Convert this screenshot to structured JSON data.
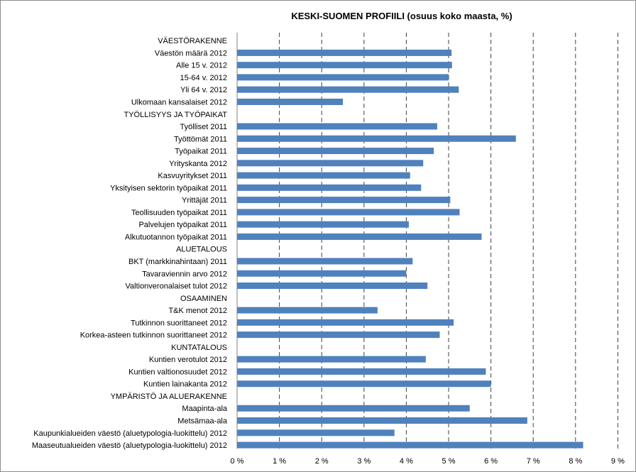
{
  "chart_data": {
    "type": "bar",
    "orientation": "horizontal",
    "title": "KESKI-SUOMEN PROFIILI (osuus koko maasta, %)",
    "xlabel": "",
    "ylabel": "",
    "xlim": [
      0,
      9
    ],
    "x_ticks": [
      "0 %",
      "1 %",
      "2 %",
      "3 %",
      "4 %",
      "5 %",
      "6 %",
      "7 %",
      "8 %",
      "9 %"
    ],
    "grid": "vertical dashed",
    "legend": "none",
    "bar_color": "#4f81bd",
    "categories": [
      "VÄESTÖRAKENNE",
      "Väestön määrä 2012",
      "Alle 15 v. 2012",
      "15-64 v. 2012",
      "Yli 64 v. 2012",
      "Ulkomaan kansalaiset 2012",
      "TYÖLLISYYS JA TYÖPAIKAT",
      "Työlliset 2011",
      "Työttömät 2011",
      "Työpaikat 2011",
      "Yrityskanta 2012",
      "Kasvuyritykset 2011",
      "Yksityisen sektorin työpaikat 2011",
      "Yrittäjät 2011",
      "Teollisuuden työpaikat 2011",
      "Palvelujen työpaikat 2011",
      "Alkutuotannon työpaikat 2011",
      "ALUETALOUS",
      "BKT (markkinahintaan) 2011",
      "Tavaraviennin arvo 2012",
      "Valtionveronalaiset tulot 2012",
      "OSAAMINEN",
      "T&K menot 2012",
      "Tutkinnon suorittaneet 2012",
      "Korkea-asteen tutkinnon suorittaneet 2012",
      "KUNTATALOUS",
      "Kuntien verotulot 2012",
      "Kuntien valtionosuudet 2012",
      "Kuntien lainakanta 2012",
      "YMPÄRISTÖ JA ALUERAKENNE",
      "Maapinta-ala",
      "Metsämaa-ala",
      "Kaupunkialueiden väestö (aluetypologia-luokittelu) 2012",
      "Maaseutualueiden väestö (aluetypologia-luokittelu) 2012"
    ],
    "values": [
      null,
      5.07,
      5.08,
      5.0,
      5.24,
      2.5,
      null,
      4.73,
      6.59,
      4.65,
      4.4,
      4.09,
      4.35,
      5.04,
      5.26,
      4.06,
      5.78,
      null,
      4.15,
      4.0,
      4.5,
      null,
      3.32,
      5.12,
      4.79,
      null,
      4.46,
      5.88,
      6.0,
      null,
      5.5,
      6.86,
      3.72,
      8.18
    ]
  }
}
